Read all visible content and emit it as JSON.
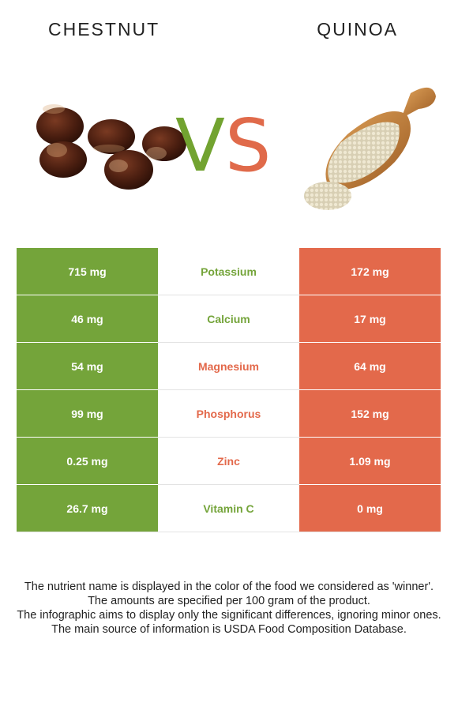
{
  "header": {
    "left_food": "CHESTNUT",
    "right_food": "QUINOA",
    "vs_v": "V",
    "vs_s": "S"
  },
  "colors": {
    "left_food": "#74a43a",
    "right_food": "#e3694b"
  },
  "images": {
    "left": "chestnuts-photo",
    "right": "quinoa-in-wooden-scoop-photo"
  },
  "nutrients": [
    {
      "left": "715 mg",
      "name": "Potassium",
      "right": "172 mg",
      "winner": "left"
    },
    {
      "left": "46 mg",
      "name": "Calcium",
      "right": "17 mg",
      "winner": "left"
    },
    {
      "left": "54 mg",
      "name": "Magnesium",
      "right": "64 mg",
      "winner": "right"
    },
    {
      "left": "99 mg",
      "name": "Phosphorus",
      "right": "152 mg",
      "winner": "right"
    },
    {
      "left": "0.25 mg",
      "name": "Zinc",
      "right": "1.09 mg",
      "winner": "right"
    },
    {
      "left": "26.7 mg",
      "name": "Vitamin C",
      "right": "0 mg",
      "winner": "left"
    }
  ],
  "footnotes": [
    "The nutrient name is displayed in the color of the food we considered as 'winner'.",
    "The amounts are specified per 100 gram of the product.",
    "The infographic aims to display only the significant differences, ignoring minor ones.",
    "The main source of information is USDA Food Composition Database."
  ]
}
